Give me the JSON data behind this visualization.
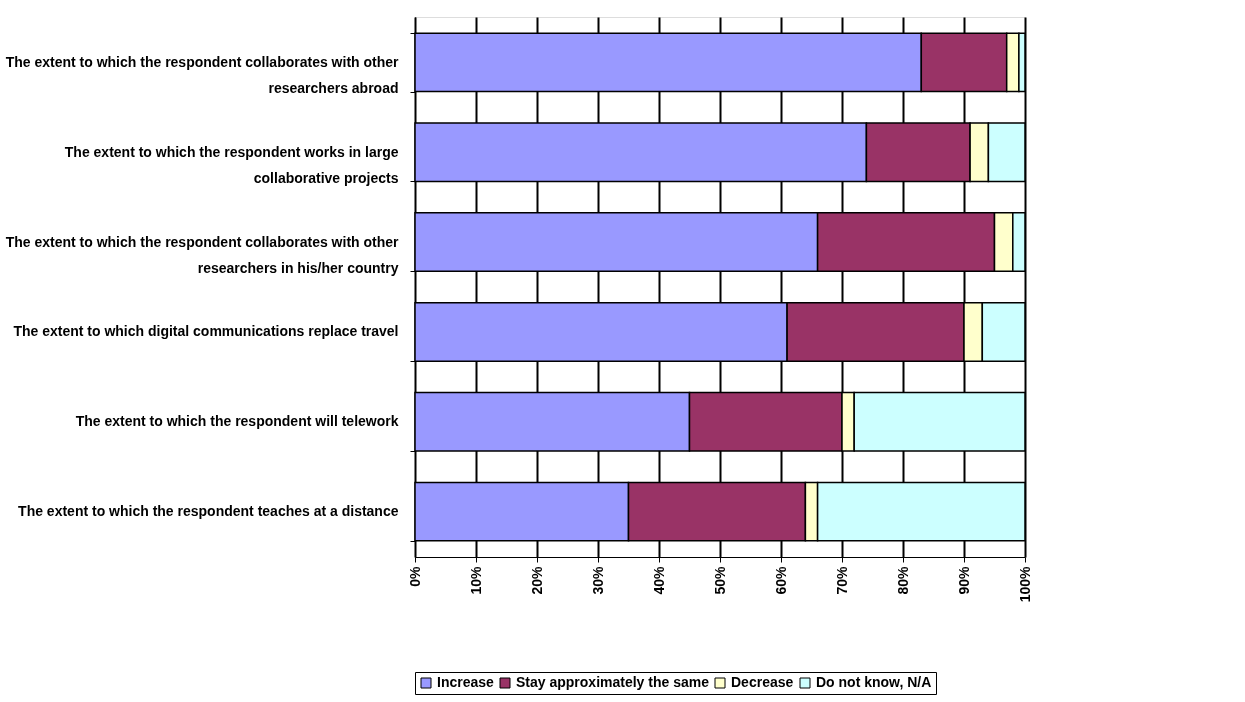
{
  "chart_data": {
    "type": "bar",
    "orientation": "horizontal",
    "stacked": true,
    "categories": [
      "The extent to which the respondent collaborates with other researchers abroad",
      "The extent to which the respondent works in large collaborative projects",
      "The extent to which the respondent collaborates with other researchers in his/her country",
      "The extent to which digital communications replace travel",
      "The extent to which the respondent will telework",
      "The extent to which the respondent teaches at a distance"
    ],
    "series": [
      {
        "name": "Increase",
        "color": "#9999ff",
        "values": [
          83,
          74,
          66,
          61,
          45,
          35
        ]
      },
      {
        "name": "Stay approximately the same",
        "color": "#993366",
        "values": [
          14,
          17,
          29,
          29,
          25,
          29
        ]
      },
      {
        "name": "Decrease",
        "color": "#ffffcc",
        "values": [
          2,
          3,
          3,
          3,
          2,
          2
        ]
      },
      {
        "name": "Do not know, N/A",
        "color": "#ccffff",
        "values": [
          1,
          6,
          2,
          7,
          28,
          34
        ]
      }
    ],
    "xlim": [
      0,
      100
    ],
    "xticks": [
      {
        "value": 0,
        "label": "0%"
      },
      {
        "value": 10,
        "label": "10%"
      },
      {
        "value": 20,
        "label": "20%"
      },
      {
        "value": 30,
        "label": "30%"
      },
      {
        "value": 40,
        "label": "40%"
      },
      {
        "value": 50,
        "label": "50%"
      },
      {
        "value": 60,
        "label": "60%"
      },
      {
        "value": 70,
        "label": "70%"
      },
      {
        "value": 80,
        "label": "80%"
      },
      {
        "value": 90,
        "label": "90%"
      },
      {
        "value": 100,
        "label": "100%"
      }
    ],
    "grid": "x",
    "legend": "bottom"
  }
}
